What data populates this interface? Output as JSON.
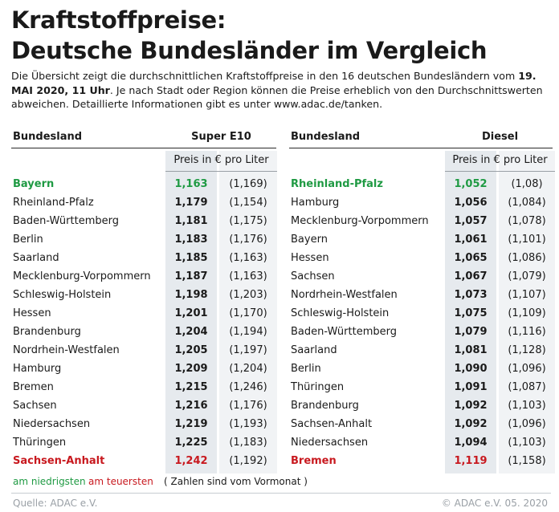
{
  "title_line1": "Kraftstoffpreise:",
  "title_line2": "Deutsche Bundesländer im Vergleich",
  "intro": {
    "part1": "Die Übersicht zeigt die durchschnittlichen Kraftstoffpreise in den 16 deutschen Bundesländern vom ",
    "date": "19. MAI 2020, 11 Uhr",
    "part2": ". Je nach Stadt oder Region können die Preise erheblich von den Durchschnittswerten abweichen. Detaillierte Informationen gibt es unter www.adac.de/tanken."
  },
  "chart_data": [
    {
      "type": "table",
      "column_headers": [
        "Bundesland",
        "Super E10"
      ],
      "subheader": "Preis in € pro Liter",
      "rows": [
        {
          "state": "Bayern",
          "price": "1,163",
          "previous": "(1,169)",
          "highlight": "lowest"
        },
        {
          "state": "Rheinland-Pfalz",
          "price": "1,179",
          "previous": "(1,154)"
        },
        {
          "state": "Baden-Württemberg",
          "price": "1,181",
          "previous": "(1,175)"
        },
        {
          "state": "Berlin",
          "price": "1,183",
          "previous": "(1,176)"
        },
        {
          "state": "Saarland",
          "price": "1,185",
          "previous": "(1,163)"
        },
        {
          "state": "Mecklenburg-Vorpommern",
          "price": "1,187",
          "previous": "(1,163)"
        },
        {
          "state": "Schleswig-Holstein",
          "price": "1,198",
          "previous": "(1,203)"
        },
        {
          "state": "Hessen",
          "price": "1,201",
          "previous": "(1,170)"
        },
        {
          "state": "Brandenburg",
          "price": "1,204",
          "previous": "(1,194)"
        },
        {
          "state": "Nordrhein-Westfalen",
          "price": "1,205",
          "previous": "(1,197)"
        },
        {
          "state": "Hamburg",
          "price": "1,209",
          "previous": "(1,204)"
        },
        {
          "state": "Bremen",
          "price": "1,215",
          "previous": "(1,246)"
        },
        {
          "state": "Sachsen",
          "price": "1,216",
          "previous": "(1,176)"
        },
        {
          "state": "Niedersachsen",
          "price": "1,219",
          "previous": "(1,193)"
        },
        {
          "state": "Thüringen",
          "price": "1,225",
          "previous": "(1,183)"
        },
        {
          "state": "Sachsen-Anhalt",
          "price": "1,242",
          "previous": "(1,192)",
          "highlight": "highest"
        }
      ]
    },
    {
      "type": "table",
      "column_headers": [
        "Bundesland",
        "Diesel"
      ],
      "subheader": "Preis in € pro Liter",
      "rows": [
        {
          "state": "Rheinland-Pfalz",
          "price": "1,052",
          "previous": "(1,08)",
          "highlight": "lowest"
        },
        {
          "state": "Hamburg",
          "price": "1,056",
          "previous": "(1,084)"
        },
        {
          "state": "Mecklenburg-Vorpommern",
          "price": "1,057",
          "previous": "(1,078)"
        },
        {
          "state": "Bayern",
          "price": "1,061",
          "previous": "(1,101)"
        },
        {
          "state": "Hessen",
          "price": "1,065",
          "previous": "(1,086)"
        },
        {
          "state": "Sachsen",
          "price": "1,067",
          "previous": "(1,079)"
        },
        {
          "state": "Nordrhein-Westfalen",
          "price": "1,073",
          "previous": "(1,107)"
        },
        {
          "state": "Schleswig-Holstein",
          "price": "1,075",
          "previous": "(1,109)"
        },
        {
          "state": "Baden-Württemberg",
          "price": "1,079",
          "previous": "(1,116)"
        },
        {
          "state": "Saarland",
          "price": "1,081",
          "previous": "(1,128)"
        },
        {
          "state": "Berlin",
          "price": "1,090",
          "previous": "(1,096)"
        },
        {
          "state": "Thüringen",
          "price": "1,091",
          "previous": "(1,087)"
        },
        {
          "state": "Brandenburg",
          "price": "1,092",
          "previous": "(1,103)"
        },
        {
          "state": "Sachsen-Anhalt",
          "price": "1,092",
          "previous": "(1,096)"
        },
        {
          "state": "Niedersachsen",
          "price": "1,094",
          "previous": "(1,103)"
        },
        {
          "state": "Bremen",
          "price": "1,119",
          "previous": "(1,158)",
          "highlight": "highest"
        }
      ]
    }
  ],
  "legend": {
    "lowest": "am niedrigsten",
    "highest": "am teuersten",
    "note": "( Zahlen sind vom Vormonat )"
  },
  "colors": {
    "lowest": "#1f9a43",
    "highest": "#c8191f",
    "price_column": "#e6eaee",
    "previous_column": "#f1f3f5"
  },
  "footer": {
    "source": "Quelle: ADAC e.V.",
    "copyright": "© ADAC e.V. 05. 2020"
  }
}
